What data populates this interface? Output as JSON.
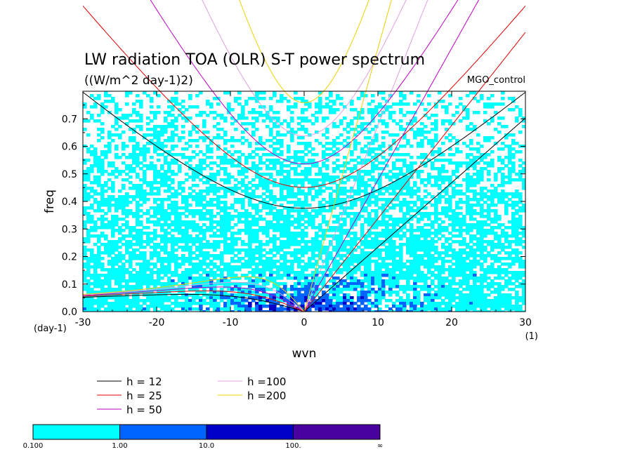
{
  "chart_data": {
    "type": "contour",
    "title": "LW radiation TOA (OLR) S-T power spectrum",
    "subtitle": "((W/m^2 day-1)2)",
    "dataset_label": "MGO_control",
    "xlabel": "wvn",
    "ylabel": "freq",
    "x_unit": "(1)",
    "y_unit": "(day-1)",
    "xlim": [
      -30,
      30
    ],
    "ylim": [
      0,
      0.8
    ],
    "x_ticks": [
      -30,
      -20,
      -10,
      0,
      10,
      20,
      30
    ],
    "y_ticks": [
      0.0,
      0.1,
      0.2,
      0.3,
      0.4,
      0.5,
      0.6,
      0.7
    ],
    "x_tick_labels": [
      "-30",
      "-20",
      "-10",
      "0",
      "10",
      "20",
      "30"
    ],
    "y_tick_labels": [
      "0.0",
      "0.1",
      "0.2",
      "0.3",
      "0.4",
      "0.5",
      "0.6",
      "0.7"
    ],
    "dispersion_curves": [
      {
        "name": "h = 12",
        "h": 12,
        "color": "#000000"
      },
      {
        "name": "h = 25",
        "h": 25,
        "color": "#e00000"
      },
      {
        "name": "h = 50",
        "h": 50,
        "color": "#c000c0"
      },
      {
        "name": "h =100",
        "h": 100,
        "color": "#e0a0e0"
      },
      {
        "name": "h =200",
        "h": 200,
        "color": "#f0d000"
      }
    ],
    "colorbar": {
      "levels": [
        "0.100",
        "1.00",
        "10.0",
        "100.",
        "∞"
      ],
      "colors": [
        "#00ffff",
        "#0064ff",
        "#0000c8",
        "#4b00a0"
      ]
    },
    "field_description_levels": {
      "low_freq_band_max_freq": 0.12,
      "dominant_level": "0.100-1.00"
    }
  }
}
